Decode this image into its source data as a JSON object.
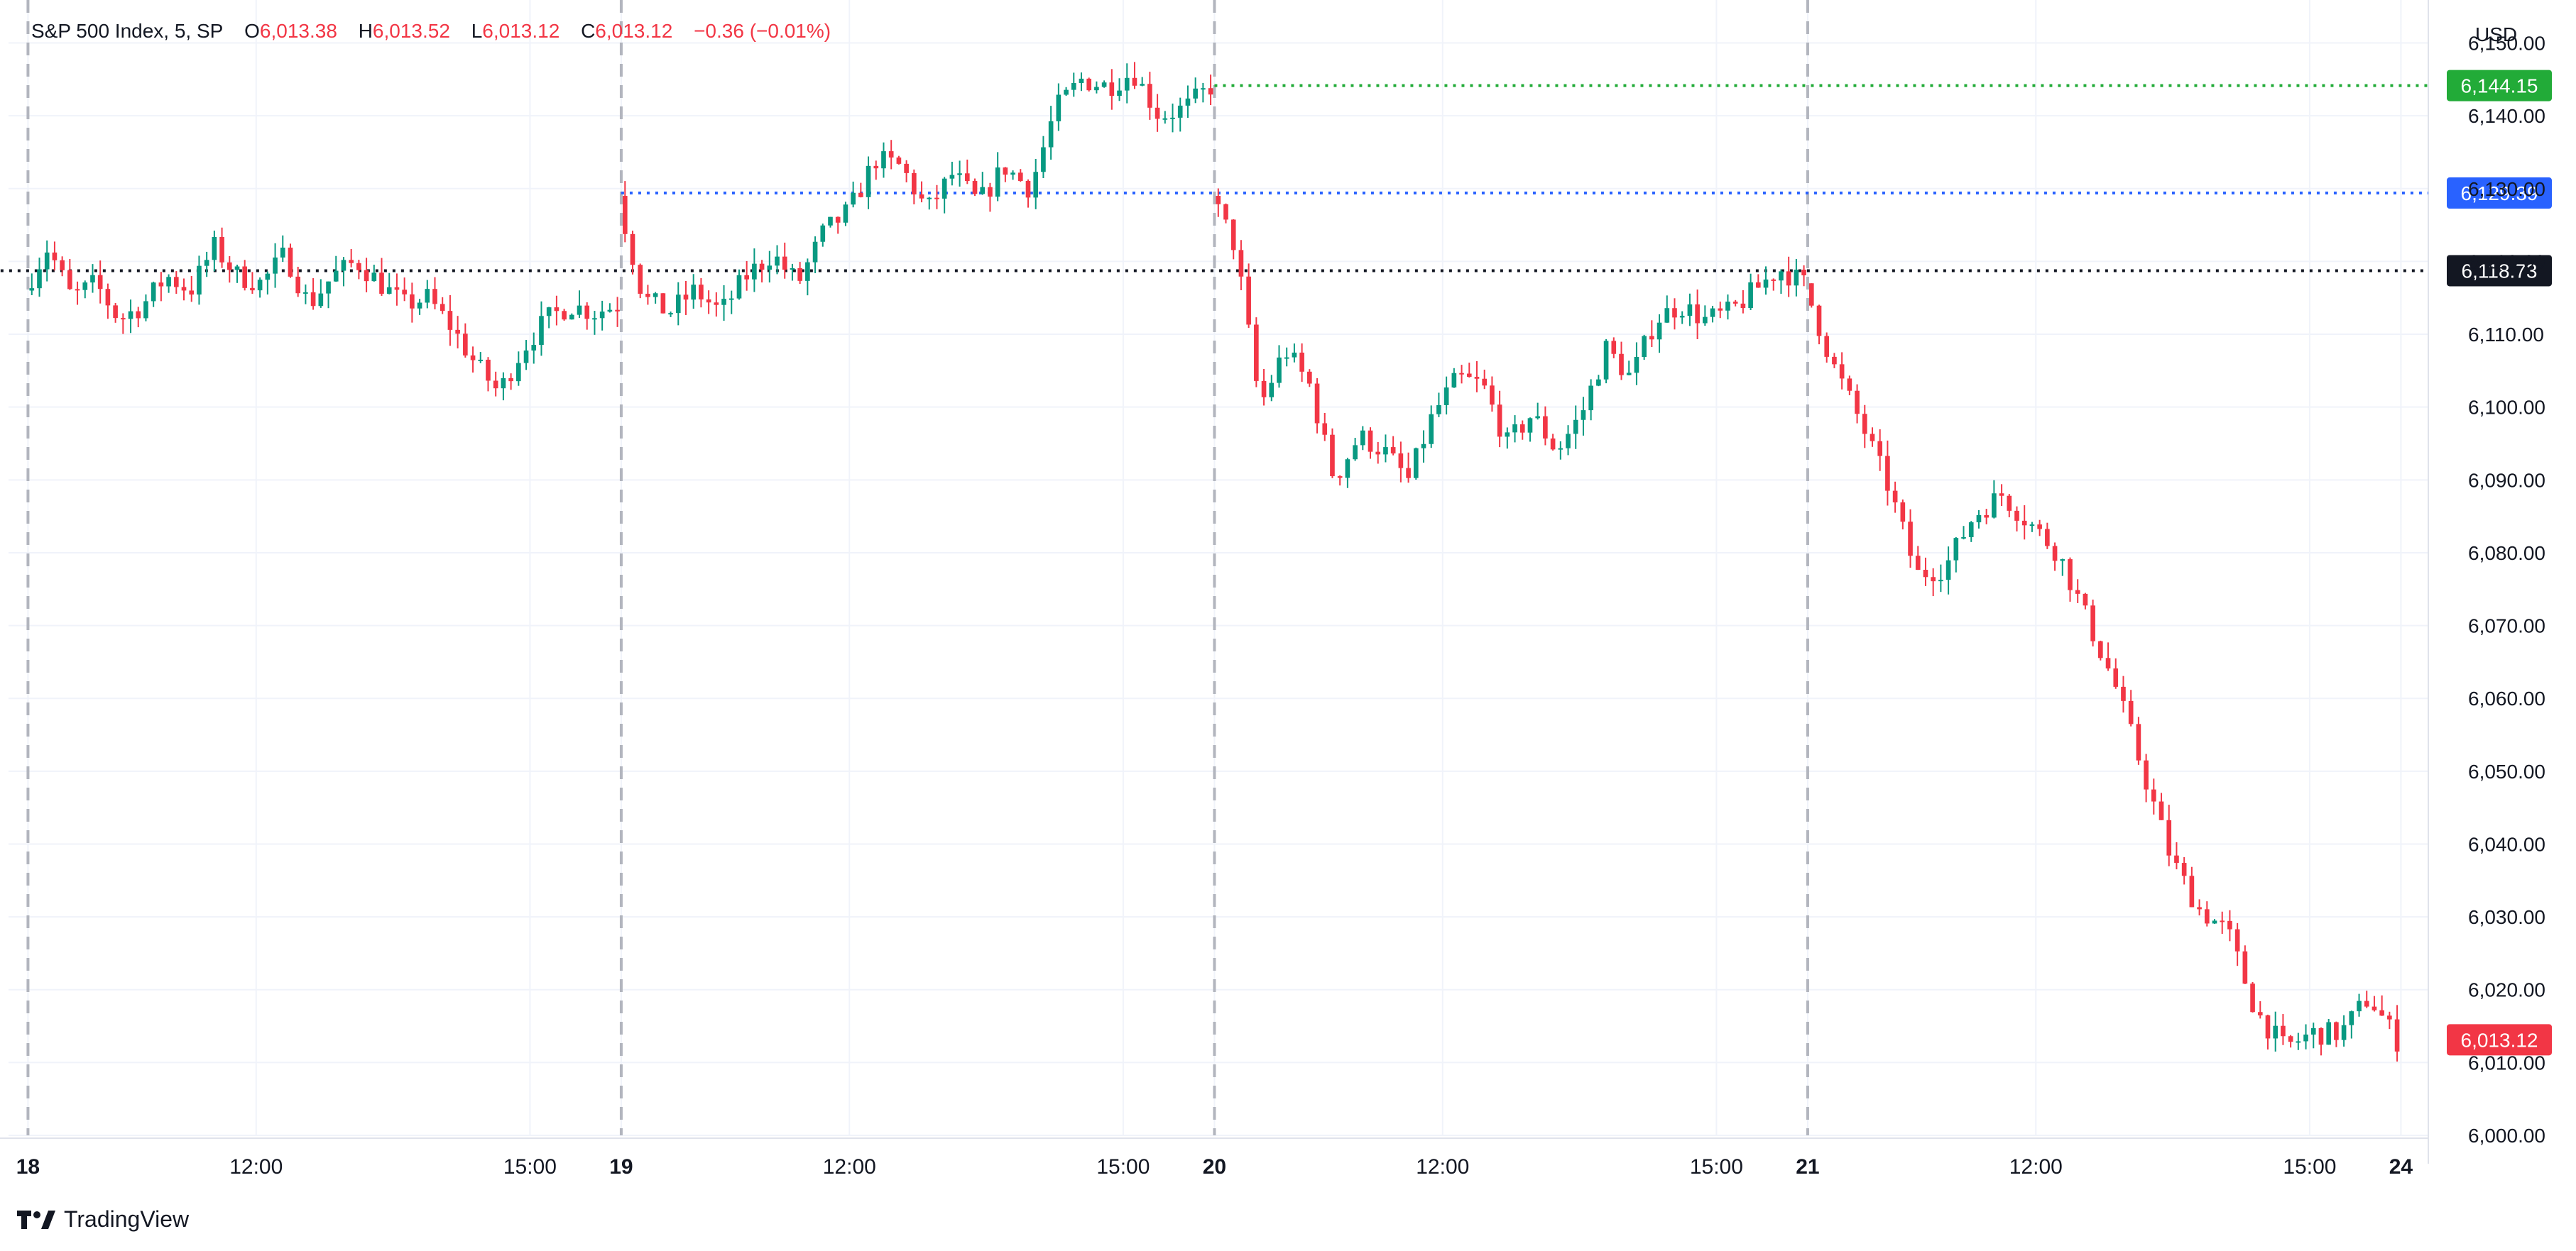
{
  "legend": {
    "symbol": "S&P 500 Index, 5, SP",
    "open_label": "O",
    "open": "6,013.38",
    "high_label": "H",
    "high": "6,013.52",
    "low_label": "L",
    "low": "6,013.12",
    "close_label": "C",
    "close": "6,013.12",
    "change": "−0.36 (−0.01%)"
  },
  "currency": "USD",
  "brand": "TradingView",
  "colors": {
    "up": "#089981",
    "down": "#f23645",
    "grid": "#f0f3fa",
    "green_line": "#22ab38",
    "blue_line": "#2962ff",
    "black_line": "#131722",
    "session_line": "#b2b5be"
  },
  "chart_data": {
    "type": "candlestick",
    "interval": "5",
    "ylim": [
      6000,
      6152
    ],
    "y_ticks": [
      6000,
      6010,
      6020,
      6030,
      6040,
      6050,
      6060,
      6070,
      6080,
      6090,
      6100,
      6110,
      6120,
      6130,
      6140,
      6150
    ],
    "y_tick_labels": [
      "6,000.00",
      "6,010.00",
      "6,020.00",
      "6,030.00",
      "6,040.00",
      "6,050.00",
      "6,060.00",
      "6,070.00",
      "6,080.00",
      "6,090.00",
      "6,100.00",
      "6,110.00",
      "6,120.00",
      "6,130.00",
      "6,140.00",
      "6,150.00"
    ],
    "x_labels": [
      {
        "label": "18",
        "bold": true,
        "t": 0
      },
      {
        "label": "12:00",
        "bold": false,
        "t": 2.5
      },
      {
        "label": "15:00",
        "bold": false,
        "t": 5.5
      },
      {
        "label": "19",
        "bold": true,
        "t": 6.5
      },
      {
        "label": "12:00",
        "bold": false,
        "t": 9.0
      },
      {
        "label": "15:00",
        "bold": false,
        "t": 12.0
      },
      {
        "label": "20",
        "bold": true,
        "t": 13.0
      },
      {
        "label": "12:00",
        "bold": false,
        "t": 15.5
      },
      {
        "label": "15:00",
        "bold": false,
        "t": 18.5
      },
      {
        "label": "21",
        "bold": true,
        "t": 19.5
      },
      {
        "label": "12:00",
        "bold": false,
        "t": 22.0
      },
      {
        "label": "15:00",
        "bold": false,
        "t": 25.0
      },
      {
        "label": "24",
        "bold": true,
        "t": 26.0
      }
    ],
    "session_breaks": [
      0,
      6.5,
      13.0,
      19.5
    ],
    "price_lines": [
      {
        "value": 6144.15,
        "label": "6,144.15",
        "color": "#22ab38",
        "style": "dotted",
        "from_t": 13.0
      },
      {
        "value": 6129.39,
        "label": "6,129.39",
        "color": "#2962ff",
        "style": "dotted",
        "from_t": 6.5
      },
      {
        "value": 6118.73,
        "label": "6,118.73",
        "color": "#131722",
        "style": "dotted",
        "from_t": -0.3
      },
      {
        "value": 6013.12,
        "label": "6,013.12",
        "color": "#f23645",
        "style": "none",
        "from_t": 25.8
      }
    ],
    "sessions": [
      {
        "start_t": 0,
        "path": [
          6116,
          6122,
          6115,
          6117,
          6112,
          6114,
          6118,
          6116,
          6122,
          6118,
          6117,
          6121,
          6114,
          6118,
          6120,
          6117,
          6114,
          6115,
          6111,
          6106,
          6102,
          6108,
          6112,
          6114,
          6113,
          6114
        ]
      },
      {
        "start_t": 6.5,
        "path": [
          6129,
          6115,
          6113,
          6116,
          6113,
          6118,
          6121,
          6117,
          6124,
          6127,
          6134,
          6133,
          6127,
          6132,
          6128,
          6133,
          6130,
          6141,
          6145,
          6144,
          6146,
          6140,
          6141,
          6144
        ]
      },
      {
        "start_t": 13.0,
        "path": [
          6129,
          6122,
          6100,
          6108,
          6103,
          6090,
          6096,
          6094,
          6090,
          6099,
          6104,
          6103,
          6095,
          6099,
          6094,
          6099,
          6108,
          6104,
          6112,
          6114,
          6112,
          6113,
          6116,
          6119,
          6117
        ]
      },
      {
        "start_t": 19.5,
        "path": [
          6117,
          6106,
          6098,
          6089,
          6077,
          6078,
          6085,
          6088,
          6084,
          6080,
          6071,
          6062,
          6050,
          6038,
          6031,
          6028,
          6017,
          6012,
          6014,
          6014,
          6019,
          6013
        ]
      }
    ]
  }
}
